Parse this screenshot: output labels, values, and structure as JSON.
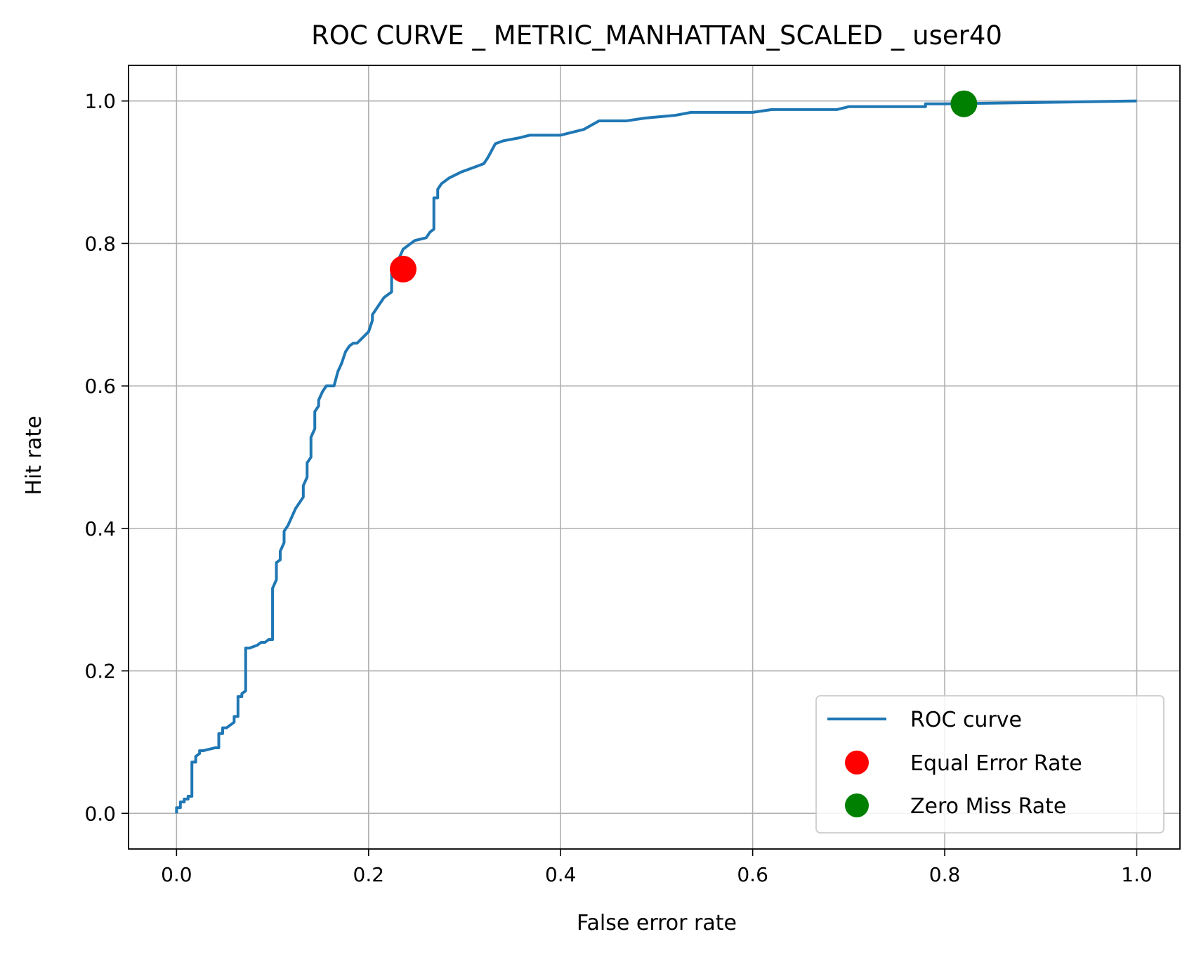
{
  "chart_data": {
    "type": "line",
    "title": "ROC CURVE _ METRIC_MANHATTAN_SCALED _ user40",
    "xlabel": "False error rate",
    "ylabel": "Hit rate",
    "xlim": [
      -0.05,
      1.045
    ],
    "ylim": [
      -0.05,
      1.05
    ],
    "xticks": [
      "0.0",
      "0.2",
      "0.4",
      "0.6",
      "0.8",
      "1.0"
    ],
    "xtick_values": [
      0.0,
      0.2,
      0.4,
      0.6,
      0.8,
      1.0
    ],
    "yticks": [
      "0.0",
      "0.2",
      "0.4",
      "0.6",
      "0.8",
      "1.0"
    ],
    "ytick_values": [
      0.0,
      0.2,
      0.4,
      0.6,
      0.8,
      1.0
    ],
    "grid": true,
    "legend_position": "bottom-right",
    "colors": {
      "roc": "#1f77b4",
      "eer": "#ff0000",
      "zmr": "#008000"
    },
    "series": [
      {
        "name": "ROC curve",
        "kind": "line",
        "x": [
          0.0,
          0.0,
          0.004,
          0.004,
          0.008,
          0.008,
          0.012,
          0.012,
          0.016,
          0.016,
          0.02,
          0.02,
          0.024,
          0.024,
          0.028,
          0.04,
          0.044,
          0.044,
          0.048,
          0.048,
          0.052,
          0.056,
          0.06,
          0.06,
          0.064,
          0.064,
          0.068,
          0.068,
          0.072,
          0.072,
          0.076,
          0.084,
          0.088,
          0.088,
          0.092,
          0.096,
          0.1,
          0.1,
          0.104,
          0.104,
          0.108,
          0.108,
          0.112,
          0.112,
          0.116,
          0.12,
          0.124,
          0.128,
          0.132,
          0.132,
          0.136,
          0.136,
          0.14,
          0.14,
          0.144,
          0.144,
          0.148,
          0.148,
          0.152,
          0.156,
          0.164,
          0.168,
          0.172,
          0.176,
          0.18,
          0.184,
          0.188,
          0.2,
          0.204,
          0.204,
          0.208,
          0.212,
          0.216,
          0.22,
          0.224,
          0.224,
          0.228,
          0.232,
          0.236,
          0.24,
          0.244,
          0.248,
          0.26,
          0.264,
          0.268,
          0.268,
          0.272,
          0.272,
          0.276,
          0.28,
          0.284,
          0.296,
          0.304,
          0.312,
          0.32,
          0.324,
          0.332,
          0.34,
          0.356,
          0.368,
          0.4,
          0.424,
          0.44,
          0.468,
          0.488,
          0.52,
          0.536,
          0.6,
          0.62,
          0.688,
          0.7,
          0.78,
          0.78,
          0.8,
          1.0
        ],
        "y": [
          0.0,
          0.008,
          0.008,
          0.016,
          0.016,
          0.02,
          0.02,
          0.024,
          0.024,
          0.072,
          0.072,
          0.08,
          0.084,
          0.088,
          0.088,
          0.092,
          0.092,
          0.112,
          0.112,
          0.12,
          0.12,
          0.124,
          0.128,
          0.136,
          0.136,
          0.164,
          0.164,
          0.168,
          0.172,
          0.232,
          0.232,
          0.236,
          0.24,
          0.24,
          0.24,
          0.244,
          0.244,
          0.316,
          0.328,
          0.352,
          0.356,
          0.368,
          0.38,
          0.396,
          0.404,
          0.416,
          0.428,
          0.436,
          0.444,
          0.46,
          0.472,
          0.492,
          0.5,
          0.528,
          0.54,
          0.564,
          0.572,
          0.58,
          0.592,
          0.6,
          0.6,
          0.62,
          0.632,
          0.648,
          0.656,
          0.66,
          0.66,
          0.676,
          0.692,
          0.7,
          0.708,
          0.716,
          0.724,
          0.728,
          0.732,
          0.764,
          0.772,
          0.78,
          0.792,
          0.796,
          0.8,
          0.804,
          0.808,
          0.816,
          0.82,
          0.864,
          0.864,
          0.876,
          0.884,
          0.888,
          0.892,
          0.9,
          0.904,
          0.908,
          0.912,
          0.92,
          0.94,
          0.944,
          0.948,
          0.952,
          0.952,
          0.96,
          0.972,
          0.972,
          0.976,
          0.98,
          0.984,
          0.984,
          0.988,
          0.988,
          0.992,
          0.992,
          0.996,
          0.996,
          1.0
        ]
      },
      {
        "name": "Equal Error Rate",
        "kind": "point",
        "x": [
          0.236
        ],
        "y": [
          0.764
        ]
      },
      {
        "name": "Zero Miss Rate",
        "kind": "point",
        "x": [
          0.82
        ],
        "y": [
          0.996
        ]
      }
    ]
  }
}
